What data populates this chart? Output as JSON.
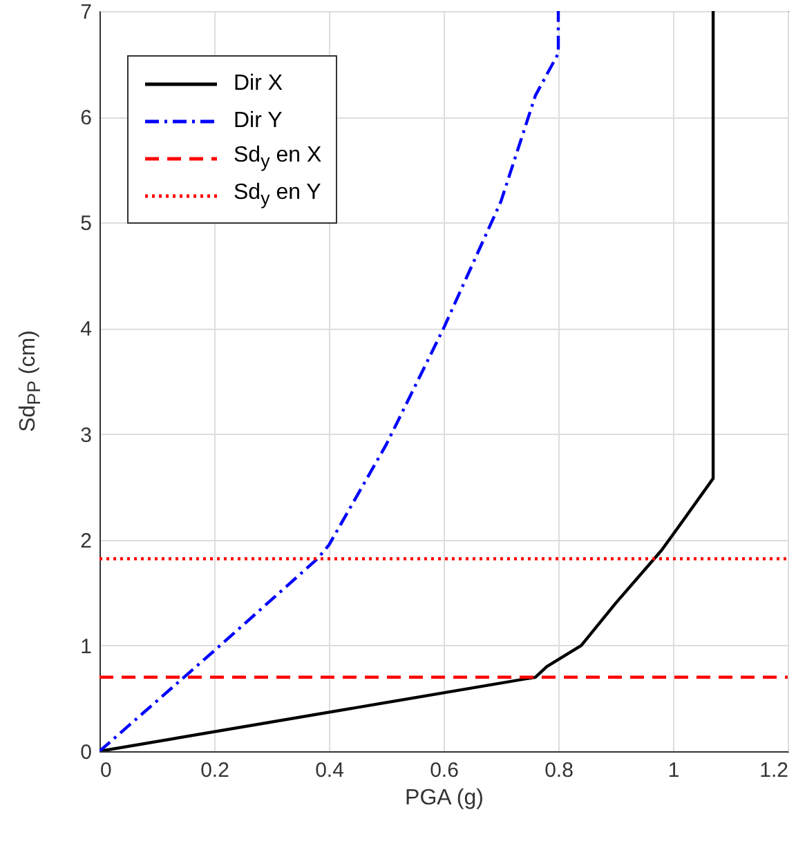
{
  "chart_data": {
    "type": "line",
    "xlabel": "PGA (g)",
    "ylabel": "Sd$_{PP}$ (cm)",
    "xlim": [
      0,
      1.2
    ],
    "ylim": [
      0,
      7
    ],
    "xticks": [
      0,
      0.2,
      0.4,
      0.6,
      0.8,
      1,
      1.2
    ],
    "yticks": [
      0,
      1,
      2,
      3,
      4,
      5,
      6,
      7
    ],
    "grid": true,
    "legend": "top left",
    "series": [
      {
        "name": "Dir X",
        "color": "#000000",
        "line_style": "solid",
        "x": [
          0,
          0.76,
          0.78,
          0.84,
          0.9,
          0.98,
          1.02,
          1.07,
          1.07
        ],
        "values": [
          0,
          0.7,
          0.8,
          1.0,
          1.4,
          1.9,
          2.2,
          2.58,
          7
        ]
      },
      {
        "name": "Dir Y",
        "color": "#0000ff",
        "line_style": "dashdot",
        "x": [
          0,
          0.2,
          0.38,
          0.4,
          0.5,
          0.6,
          0.7,
          0.76,
          0.8,
          0.8
        ],
        "values": [
          0,
          0.95,
          1.82,
          1.95,
          2.9,
          4.0,
          5.2,
          6.2,
          6.6,
          7
        ]
      },
      {
        "name": "Sd$_{y}$ en X",
        "color": "#ff0000",
        "line_style": "dashed",
        "x": [
          0,
          1.2
        ],
        "values": [
          0.7,
          0.7
        ]
      },
      {
        "name": "Sd$_{y}$ en Y",
        "color": "#ff0000",
        "line_style": "dotted",
        "x": [
          0,
          1.2
        ],
        "values": [
          1.82,
          1.82
        ]
      }
    ]
  }
}
